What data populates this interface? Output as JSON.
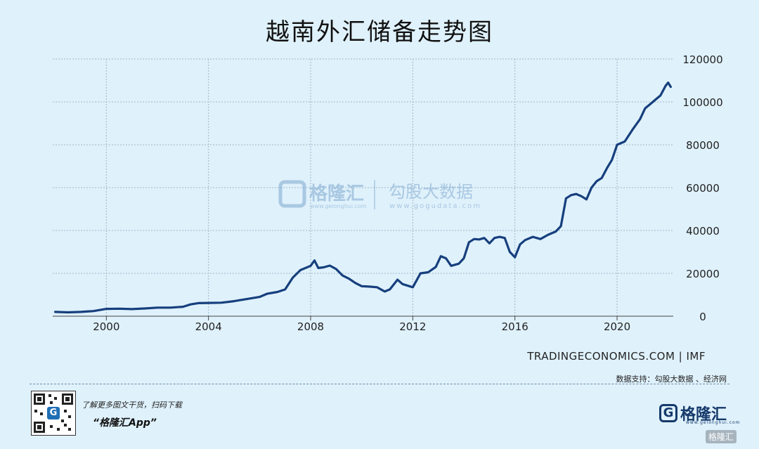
{
  "chart_data": {
    "type": "line",
    "title": "越南外汇储备走势图",
    "xlabel": "",
    "ylabel": "",
    "x_ticks": [
      2000,
      2004,
      2008,
      2012,
      2016,
      2020
    ],
    "y_ticks": [
      0,
      20000,
      40000,
      60000,
      80000,
      100000,
      120000
    ],
    "xlim": [
      1997.9,
      2022.2
    ],
    "ylim": [
      0,
      120000
    ],
    "grid": true,
    "line_color": "#163f7d",
    "series": [
      {
        "x": [
          1998.0,
          1998.5,
          1999.0,
          1999.5,
          2000.0,
          2000.5,
          2001.0,
          2001.5,
          2002.0,
          2002.5,
          2003.0,
          2003.3,
          2003.6,
          2004.0,
          2004.5,
          2005.0,
          2005.5,
          2006.0,
          2006.3,
          2006.7,
          2007.0,
          2007.3,
          2007.6,
          2008.0,
          2008.15,
          2008.3,
          2008.5,
          2008.75,
          2009.0,
          2009.25,
          2009.5,
          2009.75,
          2010.0,
          2010.3,
          2010.6,
          2010.9,
          2011.1,
          2011.4,
          2011.6,
          2012.0,
          2012.3,
          2012.6,
          2012.9,
          2013.1,
          2013.3,
          2013.5,
          2013.8,
          2014.0,
          2014.2,
          2014.4,
          2014.6,
          2014.8,
          2015.0,
          2015.2,
          2015.4,
          2015.6,
          2015.8,
          2016.0,
          2016.2,
          2016.4,
          2016.7,
          2017.0,
          2017.3,
          2017.6,
          2017.8,
          2018.0,
          2018.2,
          2018.4,
          2018.6,
          2018.8,
          2019.0,
          2019.2,
          2019.4,
          2019.6,
          2019.8,
          2020.0,
          2020.3,
          2020.6,
          2020.9,
          2021.1,
          2021.3,
          2021.5,
          2021.7,
          2021.9,
          2022.0,
          2022.1
        ],
        "values": [
          2000,
          1800,
          2000,
          2400,
          3400,
          3500,
          3300,
          3600,
          4000,
          4000,
          4400,
          5500,
          6100,
          6200,
          6300,
          7000,
          8000,
          9000,
          10500,
          11300,
          12500,
          18000,
          21500,
          23500,
          26000,
          22500,
          22800,
          23600,
          22000,
          19000,
          17500,
          15500,
          14000,
          13800,
          13500,
          11500,
          12500,
          17000,
          15000,
          13500,
          20000,
          20500,
          23000,
          28000,
          27000,
          23500,
          24500,
          27000,
          34500,
          36000,
          35800,
          36500,
          34000,
          36500,
          37000,
          36500,
          30000,
          27500,
          33500,
          35500,
          37000,
          36000,
          38000,
          39500,
          42000,
          55000,
          56500,
          57000,
          56000,
          54500,
          60000,
          63000,
          64500,
          69000,
          73000,
          80000,
          81500,
          87000,
          92000,
          97000,
          99000,
          101000,
          103000,
          107500,
          109000,
          107000
        ]
      }
    ]
  },
  "watermark": {
    "brand": "格隆汇",
    "brand_url": "www.gelonghui.com",
    "partner": "勾股大数据",
    "partner_url": "www.gogudata.com"
  },
  "source_label": "TRADINGECONOMICS.COM | IMF",
  "data_support": "数据支持：勾股大数据 、经济网",
  "promo_line1": "了解更多图文干货，扫码下载",
  "promo_line2": "“格隆汇App”",
  "footer_logo": "格隆汇",
  "footer_logo_url": "www.gelonghui.com",
  "corner_tag": "格隆汇"
}
